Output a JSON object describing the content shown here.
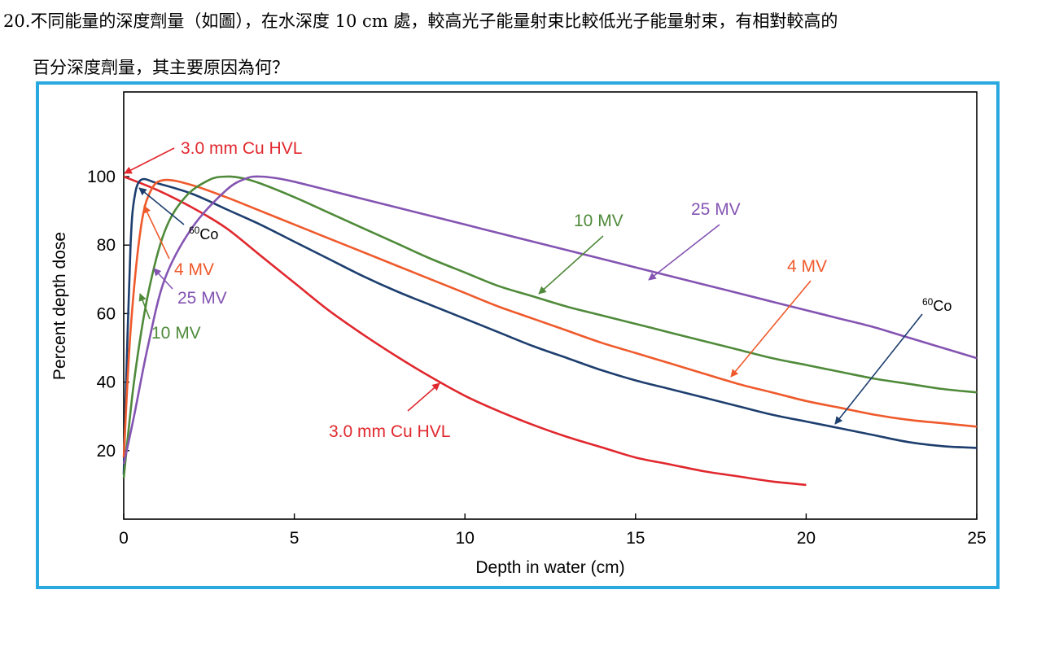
{
  "question": {
    "number": "20.",
    "line1": "不同能量的深度劑量（如圖），在水深度 10 cm 處，較高光子能量射束比較低光子能量射束，有相對較高的",
    "line2": "百分深度劑量，其主要原因為何？"
  },
  "chart_data": {
    "type": "line",
    "xlabel": "Depth in water (cm)",
    "ylabel": "Percent depth dose",
    "xlim": [
      0,
      25
    ],
    "ylim": [
      0,
      100
    ],
    "x_ticks": [
      0,
      5,
      10,
      15,
      20,
      25
    ],
    "y_ticks": [
      20,
      40,
      60,
      80,
      100
    ],
    "grid": false,
    "series": [
      {
        "name": "3.0 mm Cu HVL",
        "color": "#e0282e",
        "points": [
          [
            0,
            100
          ],
          [
            1,
            96
          ],
          [
            2,
            91
          ],
          [
            3,
            85
          ],
          [
            4,
            77
          ],
          [
            5,
            69
          ],
          [
            6,
            61
          ],
          [
            7,
            54
          ],
          [
            8,
            47.5
          ],
          [
            9,
            41.5
          ],
          [
            10,
            36
          ],
          [
            11,
            31.5
          ],
          [
            12,
            27.5
          ],
          [
            13,
            24
          ],
          [
            14,
            21
          ],
          [
            15,
            18
          ],
          [
            16,
            16
          ],
          [
            17,
            14
          ],
          [
            18,
            12.5
          ],
          [
            19,
            11
          ],
          [
            20,
            10
          ]
        ]
      },
      {
        "name": "60Co",
        "color": "#1d3e6e",
        "points": [
          [
            0,
            13
          ],
          [
            0.1,
            50
          ],
          [
            0.2,
            80
          ],
          [
            0.3,
            93
          ],
          [
            0.5,
            99
          ],
          [
            1,
            98
          ],
          [
            2,
            95
          ],
          [
            3,
            90.5
          ],
          [
            4,
            86
          ],
          [
            5,
            81
          ],
          [
            6,
            76
          ],
          [
            7,
            71
          ],
          [
            8,
            66.5
          ],
          [
            9,
            62.5
          ],
          [
            10,
            58.5
          ],
          [
            11,
            54.5
          ],
          [
            12,
            50.5
          ],
          [
            13,
            47
          ],
          [
            14,
            43.5
          ],
          [
            15,
            40.5
          ],
          [
            16,
            38
          ],
          [
            17,
            35.5
          ],
          [
            18,
            33
          ],
          [
            19,
            30.5
          ],
          [
            20,
            28.5
          ],
          [
            21,
            26.5
          ],
          [
            22,
            24.5
          ],
          [
            23,
            22.5
          ],
          [
            24,
            21.3
          ],
          [
            25,
            20.8
          ]
        ]
      },
      {
        "name": "4 MV",
        "color": "#ef5a2c",
        "points": [
          [
            0,
            18
          ],
          [
            0.2,
            55
          ],
          [
            0.5,
            85
          ],
          [
            0.8,
            96
          ],
          [
            1.2,
            99
          ],
          [
            2,
            97.5
          ],
          [
            3,
            94
          ],
          [
            4,
            90
          ],
          [
            5,
            86
          ],
          [
            6,
            82
          ],
          [
            7,
            78
          ],
          [
            8,
            74
          ],
          [
            9,
            70
          ],
          [
            10,
            66
          ],
          [
            11,
            62
          ],
          [
            12,
            58.5
          ],
          [
            13,
            55
          ],
          [
            14,
            51.5
          ],
          [
            15,
            48.5
          ],
          [
            16,
            45.5
          ],
          [
            17,
            42.5
          ],
          [
            18,
            39.5
          ],
          [
            19,
            37
          ],
          [
            20,
            34.5
          ],
          [
            21,
            32.5
          ],
          [
            22,
            30.5
          ],
          [
            23,
            29
          ],
          [
            24,
            28
          ],
          [
            25,
            27
          ]
        ]
      },
      {
        "name": "10 MV",
        "color": "#4f8a3a",
        "points": [
          [
            0,
            12
          ],
          [
            0.3,
            40
          ],
          [
            0.7,
            65
          ],
          [
            1.2,
            84
          ],
          [
            1.8,
            94
          ],
          [
            2.5,
            99
          ],
          [
            3,
            100
          ],
          [
            3.5,
            99.5
          ],
          [
            4,
            98
          ],
          [
            5,
            94
          ],
          [
            6,
            89.5
          ],
          [
            7,
            85
          ],
          [
            8,
            80.5
          ],
          [
            9,
            76
          ],
          [
            10,
            72
          ],
          [
            11,
            68
          ],
          [
            12,
            65
          ],
          [
            13,
            62
          ],
          [
            14,
            59.5
          ],
          [
            15,
            57
          ],
          [
            16,
            54.5
          ],
          [
            17,
            52
          ],
          [
            18,
            49.5
          ],
          [
            19,
            47
          ],
          [
            20,
            45
          ],
          [
            21,
            43
          ],
          [
            22,
            41
          ],
          [
            23,
            39.5
          ],
          [
            24,
            38
          ],
          [
            25,
            37
          ]
        ]
      },
      {
        "name": "25 MV",
        "color": "#8454b2",
        "points": [
          [
            0,
            16
          ],
          [
            0.3,
            30
          ],
          [
            0.7,
            50
          ],
          [
            1.2,
            70
          ],
          [
            2,
            85
          ],
          [
            3,
            96
          ],
          [
            3.6,
            99.5
          ],
          [
            4,
            100
          ],
          [
            4.5,
            99.5
          ],
          [
            5,
            98.5
          ],
          [
            6,
            96
          ],
          [
            7,
            93.5
          ],
          [
            8,
            91
          ],
          [
            9,
            88.5
          ],
          [
            10,
            86
          ],
          [
            11,
            83.5
          ],
          [
            12,
            81
          ],
          [
            13,
            78.5
          ],
          [
            14,
            76
          ],
          [
            15,
            73.5
          ],
          [
            16,
            71
          ],
          [
            17,
            68.5
          ],
          [
            18,
            66
          ],
          [
            19,
            63.5
          ],
          [
            20,
            61
          ],
          [
            21,
            58.5
          ],
          [
            22,
            56
          ],
          [
            23,
            53
          ],
          [
            24,
            50
          ],
          [
            25,
            47
          ]
        ]
      }
    ],
    "annotations": [
      {
        "text": "3.0 mm Cu HVL",
        "color": "#e0282e",
        "side": "left-top"
      },
      {
        "text": "60Co",
        "color": "#1d3e6e",
        "side": "left"
      },
      {
        "text": "4 MV",
        "color": "#ef5a2c",
        "side": "left"
      },
      {
        "text": "25 MV",
        "color": "#8454b2",
        "side": "left"
      },
      {
        "text": "10 MV",
        "color": "#4f8a3a",
        "side": "left"
      },
      {
        "text": "10 MV",
        "color": "#4f8a3a",
        "side": "right"
      },
      {
        "text": "25 MV",
        "color": "#8454b2",
        "side": "right"
      },
      {
        "text": "4 MV",
        "color": "#ef5a2c",
        "side": "right"
      },
      {
        "text": "60Co",
        "color": "#1d3e6e",
        "side": "right"
      },
      {
        "text": "3.0 mm Cu HVL",
        "color": "#e0282e",
        "side": "bottom"
      }
    ]
  }
}
